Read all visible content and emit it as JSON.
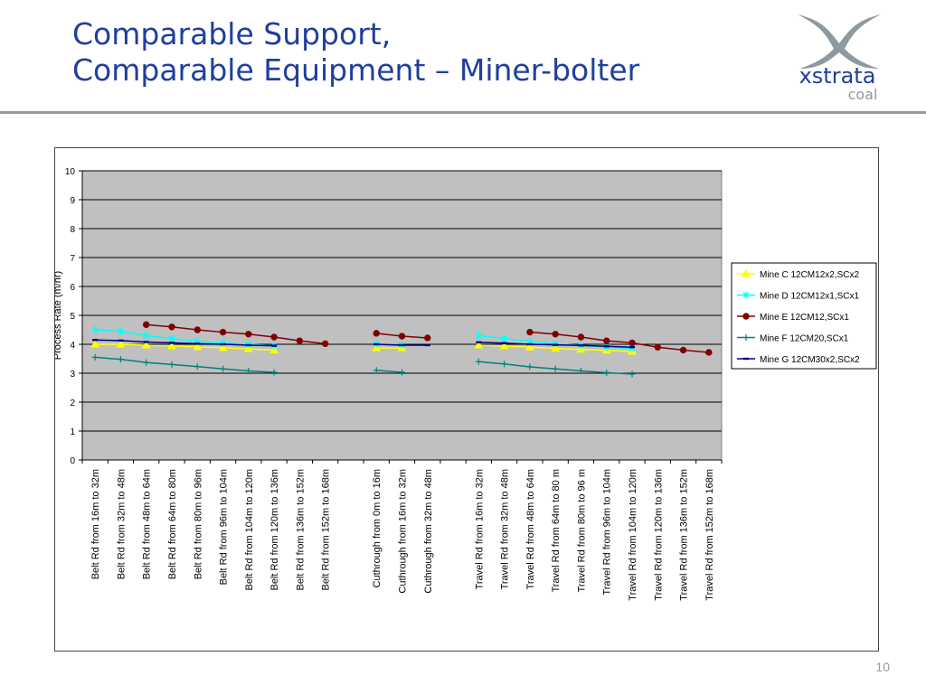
{
  "slide": {
    "title_line1": "Comparable Support,",
    "title_line2": "Comparable Equipment – Miner-bolter",
    "logo_text": "xstrata",
    "logo_subtext": "coal",
    "page_number": "10"
  },
  "chart_data": {
    "type": "line",
    "title": "",
    "xlabel": "",
    "ylabel": "Process Rate (m/hr)",
    "ylim": [
      0,
      10
    ],
    "yticks": [
      0,
      1,
      2,
      3,
      4,
      5,
      6,
      7,
      8,
      9,
      10
    ],
    "grid": true,
    "legend_position": "right",
    "categories": [
      "Belt Rd from 16m to 32m",
      "Belt Rd from 32m to 48m",
      "Belt Rd from 48m to 64m",
      "Belt Rd from 64m to 80m",
      "Belt Rd from 80m to 96m",
      "Belt Rd from 96m to 104m",
      "Belt Rd from 104m to 120m",
      "Belt Rd from 120m to 136m",
      "Belt Rd from 136m to 152m",
      "Belt Rd from 152m to 168m",
      "",
      "Cuthrough from 0m to 16m",
      "Cuthrough from 16m to 32m",
      "Cuthrough from 32m to 48m",
      "",
      "Travel Rd from 16m to 32m",
      "Travel Rd from 32m to 48m",
      "Travel Rd from 48m to 64m",
      "Travel Rd from 64m to 80 m",
      "Travel Rd from 80m to 96 m",
      "Travel Rd from 96m to 104m",
      "Travel Rd from 104m to 120m",
      "Travel Rd from 120m to 136m",
      "Travel Rd from 136m to 152m",
      "Travel Rd from 152m to 168m"
    ],
    "series": [
      {
        "name": "Mine C 12CM12x2,SCx2",
        "color": "#ffff00",
        "marker": "triangle",
        "values": [
          4.0,
          4.0,
          3.97,
          3.94,
          3.91,
          3.88,
          3.84,
          3.8,
          null,
          null,
          null,
          3.87,
          3.87,
          null,
          null,
          3.97,
          3.94,
          3.9,
          3.86,
          3.82,
          3.79,
          3.75,
          null,
          null,
          null
        ]
      },
      {
        "name": "Mine D 12CM12x1,SCx1",
        "color": "#00ffff",
        "marker": "x",
        "values": [
          4.5,
          4.45,
          4.3,
          4.2,
          4.1,
          4.05,
          4.0,
          3.95,
          null,
          null,
          null,
          4.02,
          3.98,
          null,
          null,
          4.3,
          4.2,
          4.1,
          4.02,
          3.96,
          3.9,
          3.86,
          null,
          null,
          null
        ]
      },
      {
        "name": "Mine E 12CM12,SCx1",
        "color": "#800000",
        "marker": "circle",
        "values": [
          null,
          null,
          4.68,
          4.6,
          4.5,
          4.42,
          4.35,
          4.25,
          4.12,
          4.02,
          null,
          4.38,
          4.28,
          4.22,
          null,
          null,
          null,
          4.42,
          4.35,
          4.25,
          4.12,
          4.05,
          3.9,
          3.8,
          3.72
        ]
      },
      {
        "name": "Mine F 12CM20,SCx1",
        "color": "#008080",
        "marker": "plus",
        "values": [
          3.55,
          3.48,
          3.37,
          3.3,
          3.23,
          3.15,
          3.08,
          3.03,
          null,
          null,
          null,
          3.1,
          3.03,
          null,
          null,
          3.4,
          3.32,
          3.22,
          3.15,
          3.08,
          3.02,
          2.97,
          null,
          null,
          null
        ]
      },
      {
        "name": "Mine G 12CM30x2,SCx2",
        "color": "#000080",
        "marker": "dash",
        "values": [
          4.15,
          4.13,
          4.08,
          4.05,
          4.02,
          4.0,
          3.97,
          3.95,
          null,
          null,
          null,
          4.0,
          3.97,
          3.97,
          null,
          4.07,
          4.04,
          4.0,
          3.98,
          3.96,
          3.93,
          3.9,
          null,
          null,
          null
        ]
      }
    ]
  }
}
